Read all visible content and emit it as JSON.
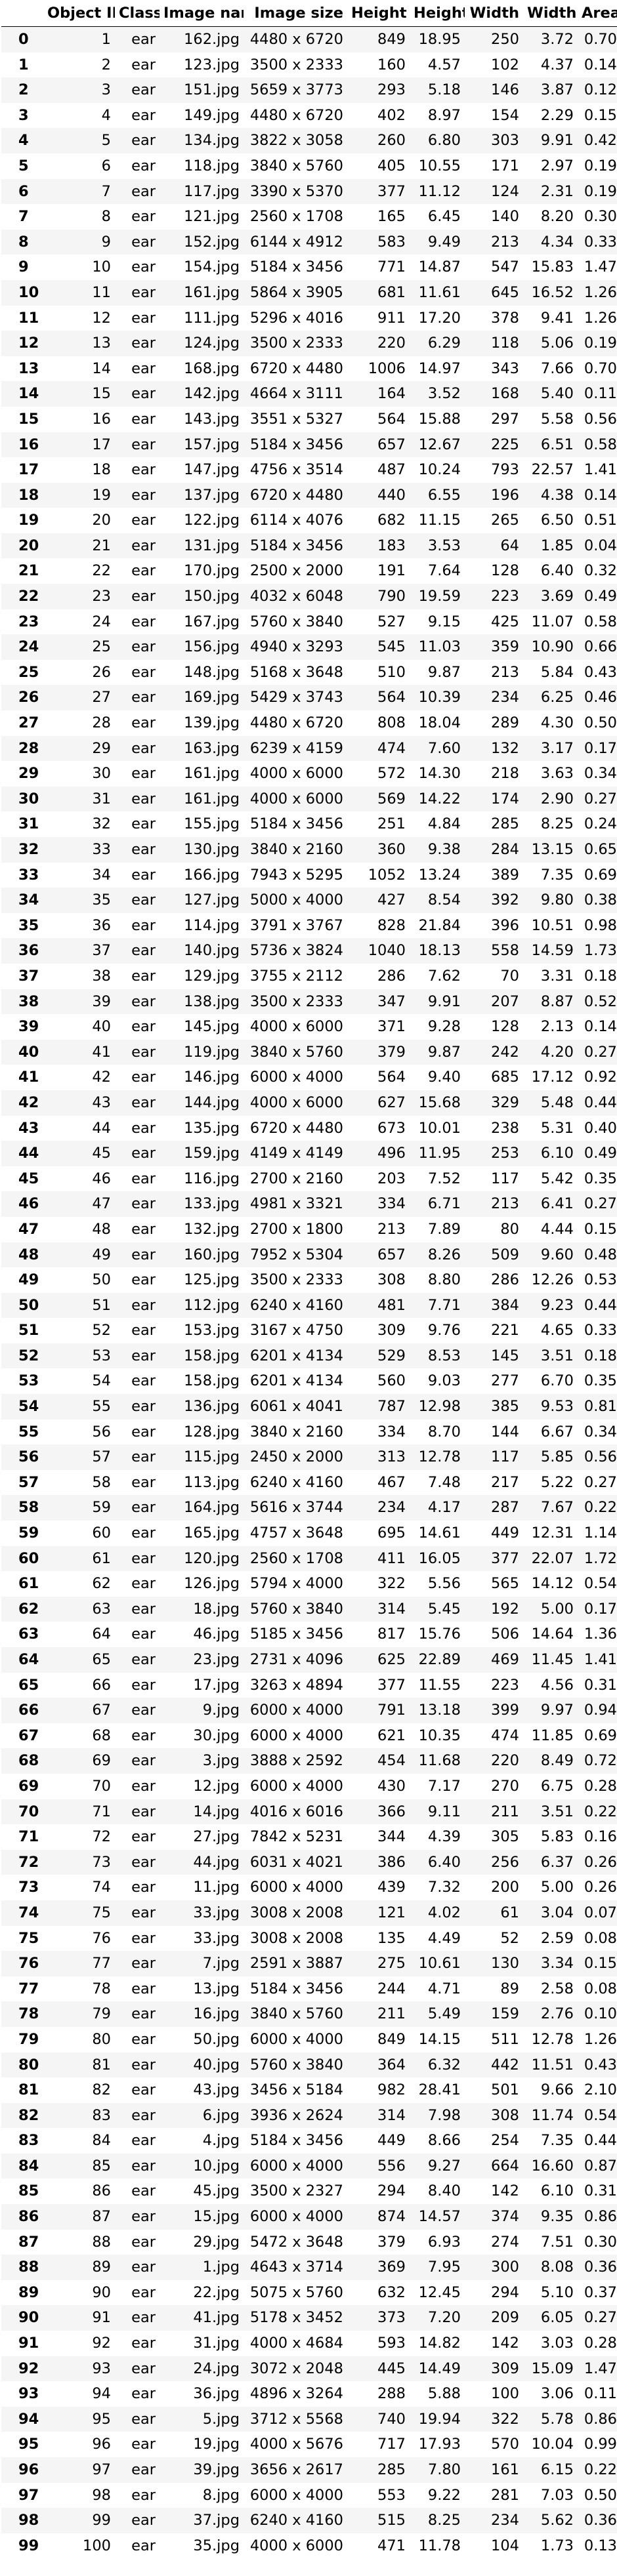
{
  "table": {
    "columns": [
      "",
      "Object ID",
      "Class",
      "Image name",
      "Image size",
      "Height",
      "Height",
      "Width",
      "Width",
      "Area"
    ],
    "rows": [
      [
        "0",
        "1",
        "ear",
        "162.jpg",
        "4480 x 6720",
        "849",
        "18.95",
        "250",
        "3.72",
        "0.70"
      ],
      [
        "1",
        "2",
        "ear",
        "123.jpg",
        "3500 x 2333",
        "160",
        "4.57",
        "102",
        "4.37",
        "0.14"
      ],
      [
        "2",
        "3",
        "ear",
        "151.jpg",
        "5659 x 3773",
        "293",
        "5.18",
        "146",
        "3.87",
        "0.12"
      ],
      [
        "3",
        "4",
        "ear",
        "149.jpg",
        "4480 x 6720",
        "402",
        "8.97",
        "154",
        "2.29",
        "0.15"
      ],
      [
        "4",
        "5",
        "ear",
        "134.jpg",
        "3822 x 3058",
        "260",
        "6.80",
        "303",
        "9.91",
        "0.42"
      ],
      [
        "5",
        "6",
        "ear",
        "118.jpg",
        "3840 x 5760",
        "405",
        "10.55",
        "171",
        "2.97",
        "0.19"
      ],
      [
        "6",
        "7",
        "ear",
        "117.jpg",
        "3390 x 5370",
        "377",
        "11.12",
        "124",
        "2.31",
        "0.19"
      ],
      [
        "7",
        "8",
        "ear",
        "121.jpg",
        "2560 x 1708",
        "165",
        "6.45",
        "140",
        "8.20",
        "0.30"
      ],
      [
        "8",
        "9",
        "ear",
        "152.jpg",
        "6144 x 4912",
        "583",
        "9.49",
        "213",
        "4.34",
        "0.33"
      ],
      [
        "9",
        "10",
        "ear",
        "154.jpg",
        "5184 x 3456",
        "771",
        "14.87",
        "547",
        "15.83",
        "1.47"
      ],
      [
        "10",
        "11",
        "ear",
        "161.jpg",
        "5864 x 3905",
        "681",
        "11.61",
        "645",
        "16.52",
        "1.26"
      ],
      [
        "11",
        "12",
        "ear",
        "111.jpg",
        "5296 x 4016",
        "911",
        "17.20",
        "378",
        "9.41",
        "1.26"
      ],
      [
        "12",
        "13",
        "ear",
        "124.jpg",
        "3500 x 2333",
        "220",
        "6.29",
        "118",
        "5.06",
        "0.19"
      ],
      [
        "13",
        "14",
        "ear",
        "168.jpg",
        "6720 x 4480",
        "1006",
        "14.97",
        "343",
        "7.66",
        "0.70"
      ],
      [
        "14",
        "15",
        "ear",
        "142.jpg",
        "4664 x 3111",
        "164",
        "3.52",
        "168",
        "5.40",
        "0.11"
      ],
      [
        "15",
        "16",
        "ear",
        "143.jpg",
        "3551 x 5327",
        "564",
        "15.88",
        "297",
        "5.58",
        "0.56"
      ],
      [
        "16",
        "17",
        "ear",
        "157.jpg",
        "5184 x 3456",
        "657",
        "12.67",
        "225",
        "6.51",
        "0.58"
      ],
      [
        "17",
        "18",
        "ear",
        "147.jpg",
        "4756 x 3514",
        "487",
        "10.24",
        "793",
        "22.57",
        "1.41"
      ],
      [
        "18",
        "19",
        "ear",
        "137.jpg",
        "6720 x 4480",
        "440",
        "6.55",
        "196",
        "4.38",
        "0.14"
      ],
      [
        "19",
        "20",
        "ear",
        "122.jpg",
        "6114 x 4076",
        "682",
        "11.15",
        "265",
        "6.50",
        "0.51"
      ],
      [
        "20",
        "21",
        "ear",
        "131.jpg",
        "5184 x 3456",
        "183",
        "3.53",
        "64",
        "1.85",
        "0.04"
      ],
      [
        "21",
        "22",
        "ear",
        "170.jpg",
        "2500 x 2000",
        "191",
        "7.64",
        "128",
        "6.40",
        "0.32"
      ],
      [
        "22",
        "23",
        "ear",
        "150.jpg",
        "4032 x 6048",
        "790",
        "19.59",
        "223",
        "3.69",
        "0.49"
      ],
      [
        "23",
        "24",
        "ear",
        "167.jpg",
        "5760 x 3840",
        "527",
        "9.15",
        "425",
        "11.07",
        "0.58"
      ],
      [
        "24",
        "25",
        "ear",
        "156.jpg",
        "4940 x 3293",
        "545",
        "11.03",
        "359",
        "10.90",
        "0.66"
      ],
      [
        "25",
        "26",
        "ear",
        "148.jpg",
        "5168 x 3648",
        "510",
        "9.87",
        "213",
        "5.84",
        "0.43"
      ],
      [
        "26",
        "27",
        "ear",
        "169.jpg",
        "5429 x 3743",
        "564",
        "10.39",
        "234",
        "6.25",
        "0.46"
      ],
      [
        "27",
        "28",
        "ear",
        "139.jpg",
        "4480 x 6720",
        "808",
        "18.04",
        "289",
        "4.30",
        "0.50"
      ],
      [
        "28",
        "29",
        "ear",
        "163.jpg",
        "6239 x 4159",
        "474",
        "7.60",
        "132",
        "3.17",
        "0.17"
      ],
      [
        "29",
        "30",
        "ear",
        "161.jpg",
        "4000 x 6000",
        "572",
        "14.30",
        "218",
        "3.63",
        "0.34"
      ],
      [
        "30",
        "31",
        "ear",
        "161.jpg",
        "4000 x 6000",
        "569",
        "14.22",
        "174",
        "2.90",
        "0.27"
      ],
      [
        "31",
        "32",
        "ear",
        "155.jpg",
        "5184 x 3456",
        "251",
        "4.84",
        "285",
        "8.25",
        "0.24"
      ],
      [
        "32",
        "33",
        "ear",
        "130.jpg",
        "3840 x 2160",
        "360",
        "9.38",
        "284",
        "13.15",
        "0.65"
      ],
      [
        "33",
        "34",
        "ear",
        "166.jpg",
        "7943 x 5295",
        "1052",
        "13.24",
        "389",
        "7.35",
        "0.69"
      ],
      [
        "34",
        "35",
        "ear",
        "127.jpg",
        "5000 x 4000",
        "427",
        "8.54",
        "392",
        "9.80",
        "0.38"
      ],
      [
        "35",
        "36",
        "ear",
        "114.jpg",
        "3791 x 3767",
        "828",
        "21.84",
        "396",
        "10.51",
        "0.98"
      ],
      [
        "36",
        "37",
        "ear",
        "140.jpg",
        "5736 x 3824",
        "1040",
        "18.13",
        "558",
        "14.59",
        "1.73"
      ],
      [
        "37",
        "38",
        "ear",
        "129.jpg",
        "3755 x 2112",
        "286",
        "7.62",
        "70",
        "3.31",
        "0.18"
      ],
      [
        "38",
        "39",
        "ear",
        "138.jpg",
        "3500 x 2333",
        "347",
        "9.91",
        "207",
        "8.87",
        "0.52"
      ],
      [
        "39",
        "40",
        "ear",
        "145.jpg",
        "4000 x 6000",
        "371",
        "9.28",
        "128",
        "2.13",
        "0.14"
      ],
      [
        "40",
        "41",
        "ear",
        "119.jpg",
        "3840 x 5760",
        "379",
        "9.87",
        "242",
        "4.20",
        "0.27"
      ],
      [
        "41",
        "42",
        "ear",
        "146.jpg",
        "6000 x 4000",
        "564",
        "9.40",
        "685",
        "17.12",
        "0.92"
      ],
      [
        "42",
        "43",
        "ear",
        "144.jpg",
        "4000 x 6000",
        "627",
        "15.68",
        "329",
        "5.48",
        "0.44"
      ],
      [
        "43",
        "44",
        "ear",
        "135.jpg",
        "6720 x 4480",
        "673",
        "10.01",
        "238",
        "5.31",
        "0.40"
      ],
      [
        "44",
        "45",
        "ear",
        "159.jpg",
        "4149 x 4149",
        "496",
        "11.95",
        "253",
        "6.10",
        "0.49"
      ],
      [
        "45",
        "46",
        "ear",
        "116.jpg",
        "2700 x 2160",
        "203",
        "7.52",
        "117",
        "5.42",
        "0.35"
      ],
      [
        "46",
        "47",
        "ear",
        "133.jpg",
        "4981 x 3321",
        "334",
        "6.71",
        "213",
        "6.41",
        "0.27"
      ],
      [
        "47",
        "48",
        "ear",
        "132.jpg",
        "2700 x 1800",
        "213",
        "7.89",
        "80",
        "4.44",
        "0.15"
      ],
      [
        "48",
        "49",
        "ear",
        "160.jpg",
        "7952 x 5304",
        "657",
        "8.26",
        "509",
        "9.60",
        "0.48"
      ],
      [
        "49",
        "50",
        "ear",
        "125.jpg",
        "3500 x 2333",
        "308",
        "8.80",
        "286",
        "12.26",
        "0.53"
      ],
      [
        "50",
        "51",
        "ear",
        "112.jpg",
        "6240 x 4160",
        "481",
        "7.71",
        "384",
        "9.23",
        "0.44"
      ],
      [
        "51",
        "52",
        "ear",
        "153.jpg",
        "3167 x 4750",
        "309",
        "9.76",
        "221",
        "4.65",
        "0.33"
      ],
      [
        "52",
        "53",
        "ear",
        "158.jpg",
        "6201 x 4134",
        "529",
        "8.53",
        "145",
        "3.51",
        "0.18"
      ],
      [
        "53",
        "54",
        "ear",
        "158.jpg",
        "6201 x 4134",
        "560",
        "9.03",
        "277",
        "6.70",
        "0.35"
      ],
      [
        "54",
        "55",
        "ear",
        "136.jpg",
        "6061 x 4041",
        "787",
        "12.98",
        "385",
        "9.53",
        "0.81"
      ],
      [
        "55",
        "56",
        "ear",
        "128.jpg",
        "3840 x 2160",
        "334",
        "8.70",
        "144",
        "6.67",
        "0.34"
      ],
      [
        "56",
        "57",
        "ear",
        "115.jpg",
        "2450 x 2000",
        "313",
        "12.78",
        "117",
        "5.85",
        "0.56"
      ],
      [
        "57",
        "58",
        "ear",
        "113.jpg",
        "6240 x 4160",
        "467",
        "7.48",
        "217",
        "5.22",
        "0.27"
      ],
      [
        "58",
        "59",
        "ear",
        "164.jpg",
        "5616 x 3744",
        "234",
        "4.17",
        "287",
        "7.67",
        "0.22"
      ],
      [
        "59",
        "60",
        "ear",
        "165.jpg",
        "4757 x 3648",
        "695",
        "14.61",
        "449",
        "12.31",
        "1.14"
      ],
      [
        "60",
        "61",
        "ear",
        "120.jpg",
        "2560 x 1708",
        "411",
        "16.05",
        "377",
        "22.07",
        "1.72"
      ],
      [
        "61",
        "62",
        "ear",
        "126.jpg",
        "5794 x 4000",
        "322",
        "5.56",
        "565",
        "14.12",
        "0.54"
      ],
      [
        "62",
        "63",
        "ear",
        "18.jpg",
        "5760 x 3840",
        "314",
        "5.45",
        "192",
        "5.00",
        "0.17"
      ],
      [
        "63",
        "64",
        "ear",
        "46.jpg",
        "5185 x 3456",
        "817",
        "15.76",
        "506",
        "14.64",
        "1.36"
      ],
      [
        "64",
        "65",
        "ear",
        "23.jpg",
        "2731 x 4096",
        "625",
        "22.89",
        "469",
        "11.45",
        "1.41"
      ],
      [
        "65",
        "66",
        "ear",
        "17.jpg",
        "3263 x 4894",
        "377",
        "11.55",
        "223",
        "4.56",
        "0.31"
      ],
      [
        "66",
        "67",
        "ear",
        "9.jpg",
        "6000 x 4000",
        "791",
        "13.18",
        "399",
        "9.97",
        "0.94"
      ],
      [
        "67",
        "68",
        "ear",
        "30.jpg",
        "6000 x 4000",
        "621",
        "10.35",
        "474",
        "11.85",
        "0.69"
      ],
      [
        "68",
        "69",
        "ear",
        "3.jpg",
        "3888 x 2592",
        "454",
        "11.68",
        "220",
        "8.49",
        "0.72"
      ],
      [
        "69",
        "70",
        "ear",
        "12.jpg",
        "6000 x 4000",
        "430",
        "7.17",
        "270",
        "6.75",
        "0.28"
      ],
      [
        "70",
        "71",
        "ear",
        "14.jpg",
        "4016 x 6016",
        "366",
        "9.11",
        "211",
        "3.51",
        "0.22"
      ],
      [
        "71",
        "72",
        "ear",
        "27.jpg",
        "7842 x 5231",
        "344",
        "4.39",
        "305",
        "5.83",
        "0.16"
      ],
      [
        "72",
        "73",
        "ear",
        "44.jpg",
        "6031 x 4021",
        "386",
        "6.40",
        "256",
        "6.37",
        "0.26"
      ],
      [
        "73",
        "74",
        "ear",
        "11.jpg",
        "6000 x 4000",
        "439",
        "7.32",
        "200",
        "5.00",
        "0.26"
      ],
      [
        "74",
        "75",
        "ear",
        "33.jpg",
        "3008 x 2008",
        "121",
        "4.02",
        "61",
        "3.04",
        "0.07"
      ],
      [
        "75",
        "76",
        "ear",
        "33.jpg",
        "3008 x 2008",
        "135",
        "4.49",
        "52",
        "2.59",
        "0.08"
      ],
      [
        "76",
        "77",
        "ear",
        "7.jpg",
        "2591 x 3887",
        "275",
        "10.61",
        "130",
        "3.34",
        "0.15"
      ],
      [
        "77",
        "78",
        "ear",
        "13.jpg",
        "5184 x 3456",
        "244",
        "4.71",
        "89",
        "2.58",
        "0.08"
      ],
      [
        "78",
        "79",
        "ear",
        "16.jpg",
        "3840 x 5760",
        "211",
        "5.49",
        "159",
        "2.76",
        "0.10"
      ],
      [
        "79",
        "80",
        "ear",
        "50.jpg",
        "6000 x 4000",
        "849",
        "14.15",
        "511",
        "12.78",
        "1.26"
      ],
      [
        "80",
        "81",
        "ear",
        "40.jpg",
        "5760 x 3840",
        "364",
        "6.32",
        "442",
        "11.51",
        "0.43"
      ],
      [
        "81",
        "82",
        "ear",
        "43.jpg",
        "3456 x 5184",
        "982",
        "28.41",
        "501",
        "9.66",
        "2.10"
      ],
      [
        "82",
        "83",
        "ear",
        "6.jpg",
        "3936 x 2624",
        "314",
        "7.98",
        "308",
        "11.74",
        "0.54"
      ],
      [
        "83",
        "84",
        "ear",
        "4.jpg",
        "5184 x 3456",
        "449",
        "8.66",
        "254",
        "7.35",
        "0.44"
      ],
      [
        "84",
        "85",
        "ear",
        "10.jpg",
        "6000 x 4000",
        "556",
        "9.27",
        "664",
        "16.60",
        "0.87"
      ],
      [
        "85",
        "86",
        "ear",
        "45.jpg",
        "3500 x 2327",
        "294",
        "8.40",
        "142",
        "6.10",
        "0.31"
      ],
      [
        "86",
        "87",
        "ear",
        "15.jpg",
        "6000 x 4000",
        "874",
        "14.57",
        "374",
        "9.35",
        "0.86"
      ],
      [
        "87",
        "88",
        "ear",
        "29.jpg",
        "5472 x 3648",
        "379",
        "6.93",
        "274",
        "7.51",
        "0.30"
      ],
      [
        "88",
        "89",
        "ear",
        "1.jpg",
        "4643 x 3714",
        "369",
        "7.95",
        "300",
        "8.08",
        "0.36"
      ],
      [
        "89",
        "90",
        "ear",
        "22.jpg",
        "5075 x 5760",
        "632",
        "12.45",
        "294",
        "5.10",
        "0.37"
      ],
      [
        "90",
        "91",
        "ear",
        "41.jpg",
        "5178 x 3452",
        "373",
        "7.20",
        "209",
        "6.05",
        "0.27"
      ],
      [
        "91",
        "92",
        "ear",
        "31.jpg",
        "4000 x 4684",
        "593",
        "14.82",
        "142",
        "3.03",
        "0.28"
      ],
      [
        "92",
        "93",
        "ear",
        "24.jpg",
        "3072 x 2048",
        "445",
        "14.49",
        "309",
        "15.09",
        "1.47"
      ],
      [
        "93",
        "94",
        "ear",
        "36.jpg",
        "4896 x 3264",
        "288",
        "5.88",
        "100",
        "3.06",
        "0.11"
      ],
      [
        "94",
        "95",
        "ear",
        "5.jpg",
        "3712 x 5568",
        "740",
        "19.94",
        "322",
        "5.78",
        "0.86"
      ],
      [
        "95",
        "96",
        "ear",
        "19.jpg",
        "4000 x 5676",
        "717",
        "17.93",
        "570",
        "10.04",
        "0.99"
      ],
      [
        "96",
        "97",
        "ear",
        "39.jpg",
        "3656 x 2617",
        "285",
        "7.80",
        "161",
        "6.15",
        "0.22"
      ],
      [
        "97",
        "98",
        "ear",
        "8.jpg",
        "6000 x 4000",
        "553",
        "9.22",
        "281",
        "7.03",
        "0.50"
      ],
      [
        "98",
        "99",
        "ear",
        "37.jpg",
        "6240 x 4160",
        "515",
        "8.25",
        "234",
        "5.62",
        "0.36"
      ],
      [
        "99",
        "100",
        "ear",
        "35.jpg",
        "4000 x 6000",
        "471",
        "11.78",
        "104",
        "1.73",
        "0.13"
      ]
    ]
  }
}
